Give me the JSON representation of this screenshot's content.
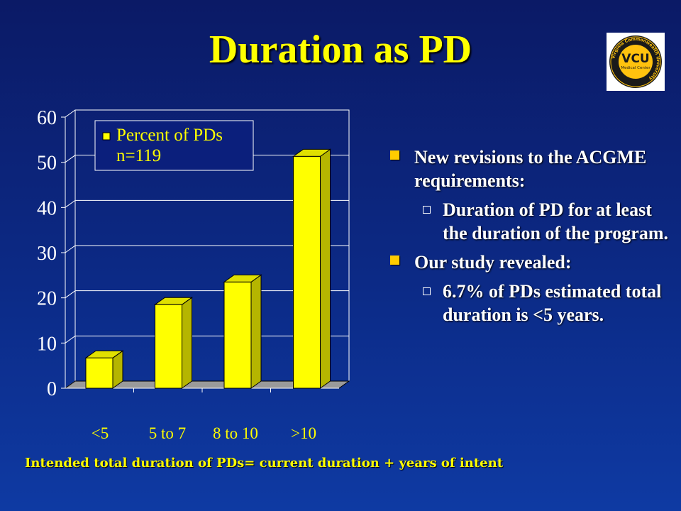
{
  "slide": {
    "title": "Duration as PD",
    "logo_text": "VCU",
    "logo_subtext": "Medical Center",
    "logo_ring_text": "Virginia Commonwealth University",
    "footnote": "Intended total duration of PDs= current duration + years of intent"
  },
  "bullets": [
    {
      "text": "New revisions to the ACGME requirements:",
      "sub": [
        "Duration of PD for at least the duration of the program."
      ]
    },
    {
      "text": "Our study revealed:",
      "sub": [
        "6.7% of PDs estimated total duration is <5 years."
      ]
    }
  ],
  "colors": {
    "title": "#ffff00",
    "bar_front": "#ffff00",
    "bar_side": "#b5b500",
    "bar_top": "#e0e000",
    "plot_floor": "#9a9a9a",
    "bullet_square": "#ffcc00",
    "logo_gold": "#ffc20e"
  },
  "chart_data": {
    "type": "bar",
    "style": "3d",
    "categories": [
      "<5",
      "5 to 7",
      "8 to 10",
      ">10"
    ],
    "series": [
      {
        "name": "Percent of PDs\nn=119",
        "values": [
          6.7,
          18.5,
          23.5,
          51.3
        ]
      }
    ],
    "legend_lines": [
      "Percent of PDs",
      "n=119"
    ],
    "legend_position": "top-left",
    "ylim": [
      0,
      60
    ],
    "yticks": [
      "0",
      "10",
      "20",
      "30",
      "40",
      "50",
      "60"
    ],
    "grid": true
  }
}
